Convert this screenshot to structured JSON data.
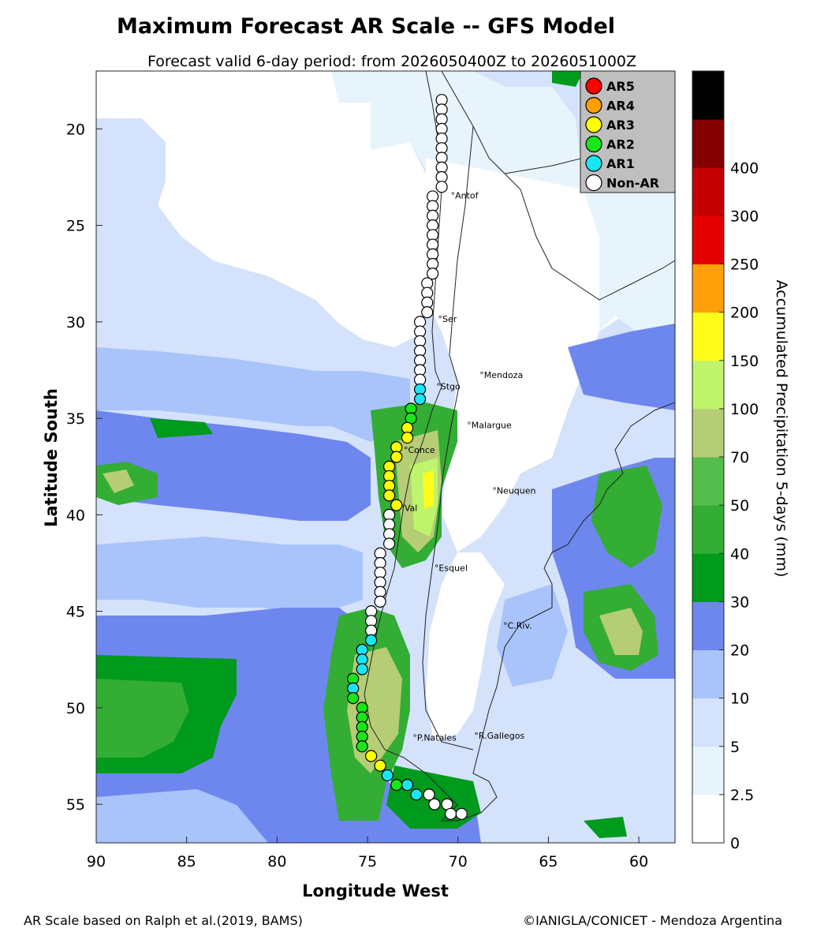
{
  "title": "Maximum Forecast AR Scale -- GFS Model",
  "subtitle": "Forecast valid 6-day period: from 2026050400Z to 2026051000Z",
  "footer_left": "AR Scale based on Ralph et al.(2019, BAMS)",
  "footer_right": "©IANIGLA/CONICET - Mendoza Argentina",
  "chart_data": {
    "type": "map",
    "xlabel": "Longitude West",
    "ylabel": "Latitude South",
    "x_ticks": [
      90,
      85,
      80,
      75,
      70,
      65,
      60
    ],
    "y_ticks": [
      20,
      25,
      30,
      35,
      40,
      45,
      50,
      55
    ],
    "xlim": [
      90,
      58
    ],
    "ylim": [
      17,
      57
    ],
    "colorbar": {
      "label": "Accumulated Precipitation 5-days (mm)",
      "tick_labels": [
        "0",
        "2.5",
        "5",
        "10",
        "20",
        "30",
        "40",
        "50",
        "70",
        "100",
        "150",
        "200",
        "250",
        "300",
        "400"
      ],
      "colors": [
        "#ffffff",
        "#e8f4fc",
        "#d4e2fb",
        "#a9c3fb",
        "#6e87ee",
        "#009a1c",
        "#33ad33",
        "#55bd4d",
        "#b5cd75",
        "#bff46d",
        "#fffb1a",
        "#ff9f0a",
        "#e50000",
        "#c40000",
        "#840000",
        "#000000"
      ]
    },
    "legend": {
      "position": "top-right",
      "entries": [
        {
          "label": "AR5",
          "color": "#ff0000"
        },
        {
          "label": "AR4",
          "color": "#ff9f00"
        },
        {
          "label": "AR3",
          "color": "#ffff00"
        },
        {
          "label": "AR2",
          "color": "#19e619"
        },
        {
          "label": "AR1",
          "color": "#19e6f5"
        },
        {
          "label": "Non-AR",
          "color": "#ffffff"
        }
      ]
    },
    "cities": [
      {
        "name": "Antof",
        "lon": 70.4,
        "lat": 23.6
      },
      {
        "name": "Ser",
        "lon": 71.1,
        "lat": 30.0
      },
      {
        "name": "Stgo",
        "lon": 71.2,
        "lat": 33.5
      },
      {
        "name": "Mendoza",
        "lon": 68.8,
        "lat": 32.9
      },
      {
        "name": "Malargue",
        "lon": 69.5,
        "lat": 35.5
      },
      {
        "name": "Conce",
        "lon": 73.0,
        "lat": 36.8
      },
      {
        "name": "Val",
        "lon": 73.2,
        "lat": 39.8
      },
      {
        "name": "Neuquen",
        "lon": 68.1,
        "lat": 38.9
      },
      {
        "name": "Esquel",
        "lon": 71.3,
        "lat": 42.9
      },
      {
        "name": "C.Riv.",
        "lon": 67.5,
        "lat": 45.9
      },
      {
        "name": "P.Natales",
        "lon": 72.5,
        "lat": 51.7
      },
      {
        "name": "R.Gallegos",
        "lon": 69.1,
        "lat": 51.6
      }
    ],
    "ar_points": [
      {
        "lon": 70.9,
        "lat": 18.5,
        "cat": 0
      },
      {
        "lon": 70.9,
        "lat": 19.0,
        "cat": 0
      },
      {
        "lon": 70.9,
        "lat": 19.5,
        "cat": 0
      },
      {
        "lon": 70.9,
        "lat": 20.0,
        "cat": 0
      },
      {
        "lon": 70.9,
        "lat": 20.5,
        "cat": 0
      },
      {
        "lon": 70.9,
        "lat": 21.0,
        "cat": 0
      },
      {
        "lon": 70.9,
        "lat": 21.5,
        "cat": 0
      },
      {
        "lon": 70.9,
        "lat": 22.0,
        "cat": 0
      },
      {
        "lon": 70.9,
        "lat": 22.5,
        "cat": 0
      },
      {
        "lon": 70.9,
        "lat": 23.0,
        "cat": 0
      },
      {
        "lon": 71.4,
        "lat": 23.5,
        "cat": 0
      },
      {
        "lon": 71.4,
        "lat": 24.0,
        "cat": 0
      },
      {
        "lon": 71.4,
        "lat": 24.5,
        "cat": 0
      },
      {
        "lon": 71.4,
        "lat": 25.0,
        "cat": 0
      },
      {
        "lon": 71.4,
        "lat": 25.5,
        "cat": 0
      },
      {
        "lon": 71.4,
        "lat": 26.0,
        "cat": 0
      },
      {
        "lon": 71.4,
        "lat": 26.5,
        "cat": 0
      },
      {
        "lon": 71.4,
        "lat": 27.0,
        "cat": 0
      },
      {
        "lon": 71.4,
        "lat": 27.5,
        "cat": 0
      },
      {
        "lon": 71.7,
        "lat": 28.0,
        "cat": 0
      },
      {
        "lon": 71.7,
        "lat": 28.5,
        "cat": 0
      },
      {
        "lon": 71.7,
        "lat": 29.0,
        "cat": 0
      },
      {
        "lon": 71.7,
        "lat": 29.5,
        "cat": 0
      },
      {
        "lon": 72.1,
        "lat": 30.0,
        "cat": 0
      },
      {
        "lon": 72.1,
        "lat": 30.5,
        "cat": 0
      },
      {
        "lon": 72.1,
        "lat": 31.0,
        "cat": 0
      },
      {
        "lon": 72.1,
        "lat": 31.5,
        "cat": 0
      },
      {
        "lon": 72.1,
        "lat": 32.0,
        "cat": 0
      },
      {
        "lon": 72.1,
        "lat": 32.5,
        "cat": 0
      },
      {
        "lon": 72.1,
        "lat": 33.0,
        "cat": 0
      },
      {
        "lon": 72.1,
        "lat": 33.5,
        "cat": 1
      },
      {
        "lon": 72.1,
        "lat": 34.0,
        "cat": 1
      },
      {
        "lon": 72.6,
        "lat": 34.5,
        "cat": 2
      },
      {
        "lon": 72.6,
        "lat": 35.0,
        "cat": 2
      },
      {
        "lon": 72.8,
        "lat": 35.5,
        "cat": 3
      },
      {
        "lon": 72.8,
        "lat": 36.0,
        "cat": 3
      },
      {
        "lon": 73.4,
        "lat": 36.5,
        "cat": 3
      },
      {
        "lon": 73.4,
        "lat": 37.0,
        "cat": 3
      },
      {
        "lon": 73.8,
        "lat": 37.5,
        "cat": 3
      },
      {
        "lon": 73.8,
        "lat": 38.0,
        "cat": 3
      },
      {
        "lon": 73.8,
        "lat": 38.5,
        "cat": 3
      },
      {
        "lon": 73.8,
        "lat": 39.0,
        "cat": 3
      },
      {
        "lon": 73.4,
        "lat": 39.5,
        "cat": 3
      },
      {
        "lon": 73.8,
        "lat": 40.0,
        "cat": 0
      },
      {
        "lon": 73.8,
        "lat": 40.5,
        "cat": 0
      },
      {
        "lon": 73.8,
        "lat": 41.0,
        "cat": 0
      },
      {
        "lon": 73.8,
        "lat": 41.5,
        "cat": 0
      },
      {
        "lon": 74.3,
        "lat": 42.0,
        "cat": 0
      },
      {
        "lon": 74.3,
        "lat": 42.5,
        "cat": 0
      },
      {
        "lon": 74.3,
        "lat": 43.0,
        "cat": 0
      },
      {
        "lon": 74.3,
        "lat": 43.5,
        "cat": 0
      },
      {
        "lon": 74.3,
        "lat": 44.0,
        "cat": 0
      },
      {
        "lon": 74.3,
        "lat": 44.5,
        "cat": 0
      },
      {
        "lon": 74.8,
        "lat": 45.0,
        "cat": 0
      },
      {
        "lon": 74.8,
        "lat": 45.5,
        "cat": 0
      },
      {
        "lon": 74.8,
        "lat": 46.0,
        "cat": 0
      },
      {
        "lon": 74.8,
        "lat": 46.5,
        "cat": 1
      },
      {
        "lon": 75.3,
        "lat": 47.0,
        "cat": 1
      },
      {
        "lon": 75.3,
        "lat": 47.5,
        "cat": 1
      },
      {
        "lon": 75.3,
        "lat": 48.0,
        "cat": 1
      },
      {
        "lon": 75.8,
        "lat": 48.5,
        "cat": 2
      },
      {
        "lon": 75.8,
        "lat": 49.0,
        "cat": 1
      },
      {
        "lon": 75.8,
        "lat": 49.5,
        "cat": 2
      },
      {
        "lon": 75.3,
        "lat": 50.0,
        "cat": 2
      },
      {
        "lon": 75.3,
        "lat": 50.5,
        "cat": 2
      },
      {
        "lon": 75.3,
        "lat": 51.0,
        "cat": 2
      },
      {
        "lon": 75.3,
        "lat": 51.5,
        "cat": 2
      },
      {
        "lon": 75.3,
        "lat": 52.0,
        "cat": 2
      },
      {
        "lon": 74.8,
        "lat": 52.5,
        "cat": 3
      },
      {
        "lon": 74.3,
        "lat": 53.0,
        "cat": 3
      },
      {
        "lon": 73.9,
        "lat": 53.5,
        "cat": 1
      },
      {
        "lon": 73.4,
        "lat": 54.0,
        "cat": 2
      },
      {
        "lon": 72.8,
        "lat": 54.0,
        "cat": 1
      },
      {
        "lon": 72.3,
        "lat": 54.5,
        "cat": 1
      },
      {
        "lon": 71.6,
        "lat": 54.5,
        "cat": 0
      },
      {
        "lon": 71.3,
        "lat": 55.0,
        "cat": 0
      },
      {
        "lon": 70.6,
        "lat": 55.0,
        "cat": 0
      },
      {
        "lon": 70.4,
        "lat": 55.5,
        "cat": 0
      },
      {
        "lon": 69.8,
        "lat": 55.5,
        "cat": 0
      }
    ]
  }
}
